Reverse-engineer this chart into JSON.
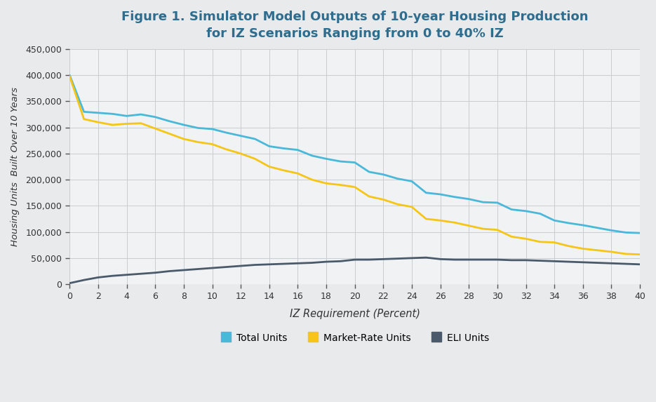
{
  "title_line1": "Figure 1. Simulator Model Outputs of 10-year Housing Production",
  "title_line2": "for IZ Scenarios Ranging from 0 to 40% IZ",
  "xlabel": "IZ Requirement (Percent)",
  "ylabel": "Housing Units  Built Over 10 Years",
  "background_color": "#e8eaec",
  "plot_bg_color": "#f0f2f4",
  "grid_color": "#c8cdd2",
  "title_color": "#2e6d8e",
  "x": [
    0,
    1,
    2,
    3,
    4,
    5,
    6,
    7,
    8,
    9,
    10,
    11,
    12,
    13,
    14,
    15,
    16,
    17,
    18,
    19,
    20,
    21,
    22,
    23,
    24,
    25,
    26,
    27,
    28,
    29,
    30,
    31,
    32,
    33,
    34,
    35,
    36,
    37,
    38,
    39,
    40
  ],
  "total_units": [
    400000,
    330000,
    328000,
    326000,
    322000,
    325000,
    320000,
    312000,
    305000,
    299000,
    297000,
    290000,
    284000,
    278000,
    264000,
    260000,
    257000,
    246000,
    240000,
    235000,
    233000,
    215000,
    210000,
    202000,
    197000,
    175000,
    172000,
    167000,
    163000,
    157000,
    156000,
    143000,
    140000,
    135000,
    122000,
    117000,
    113000,
    108000,
    103000,
    99000,
    98000
  ],
  "market_rate_units": [
    398000,
    316000,
    310000,
    305000,
    307000,
    308000,
    298000,
    288000,
    278000,
    272000,
    268000,
    258000,
    250000,
    240000,
    225000,
    218000,
    212000,
    200000,
    193000,
    190000,
    186000,
    168000,
    162000,
    153000,
    148000,
    125000,
    122000,
    118000,
    112000,
    106000,
    104000,
    91000,
    87000,
    81000,
    80000,
    73000,
    68000,
    65000,
    62000,
    58000,
    57000
  ],
  "eli_units": [
    2000,
    8000,
    13000,
    16000,
    18000,
    20000,
    22000,
    25000,
    27000,
    29000,
    31000,
    33000,
    35000,
    37000,
    38000,
    39000,
    40000,
    41000,
    43000,
    44000,
    47000,
    47000,
    48000,
    49000,
    50000,
    51000,
    48000,
    47000,
    47000,
    47000,
    47000,
    46000,
    46000,
    45000,
    44000,
    43000,
    42000,
    41000,
    40000,
    39000,
    38000
  ],
  "total_color": "#4ab8d8",
  "market_color": "#f5c518",
  "eli_color": "#4a5a6a",
  "ylim": [
    0,
    450000
  ],
  "ytick_step": 50000,
  "xtick_values": [
    0,
    2,
    4,
    6,
    8,
    10,
    12,
    14,
    16,
    18,
    20,
    22,
    24,
    26,
    28,
    30,
    32,
    34,
    36,
    38,
    40
  ],
  "legend_labels": [
    "Total Units",
    "Market-Rate Units",
    "ELI Units"
  ],
  "line_width": 2.0,
  "figsize": [
    9.35,
    5.73
  ],
  "dpi": 100
}
